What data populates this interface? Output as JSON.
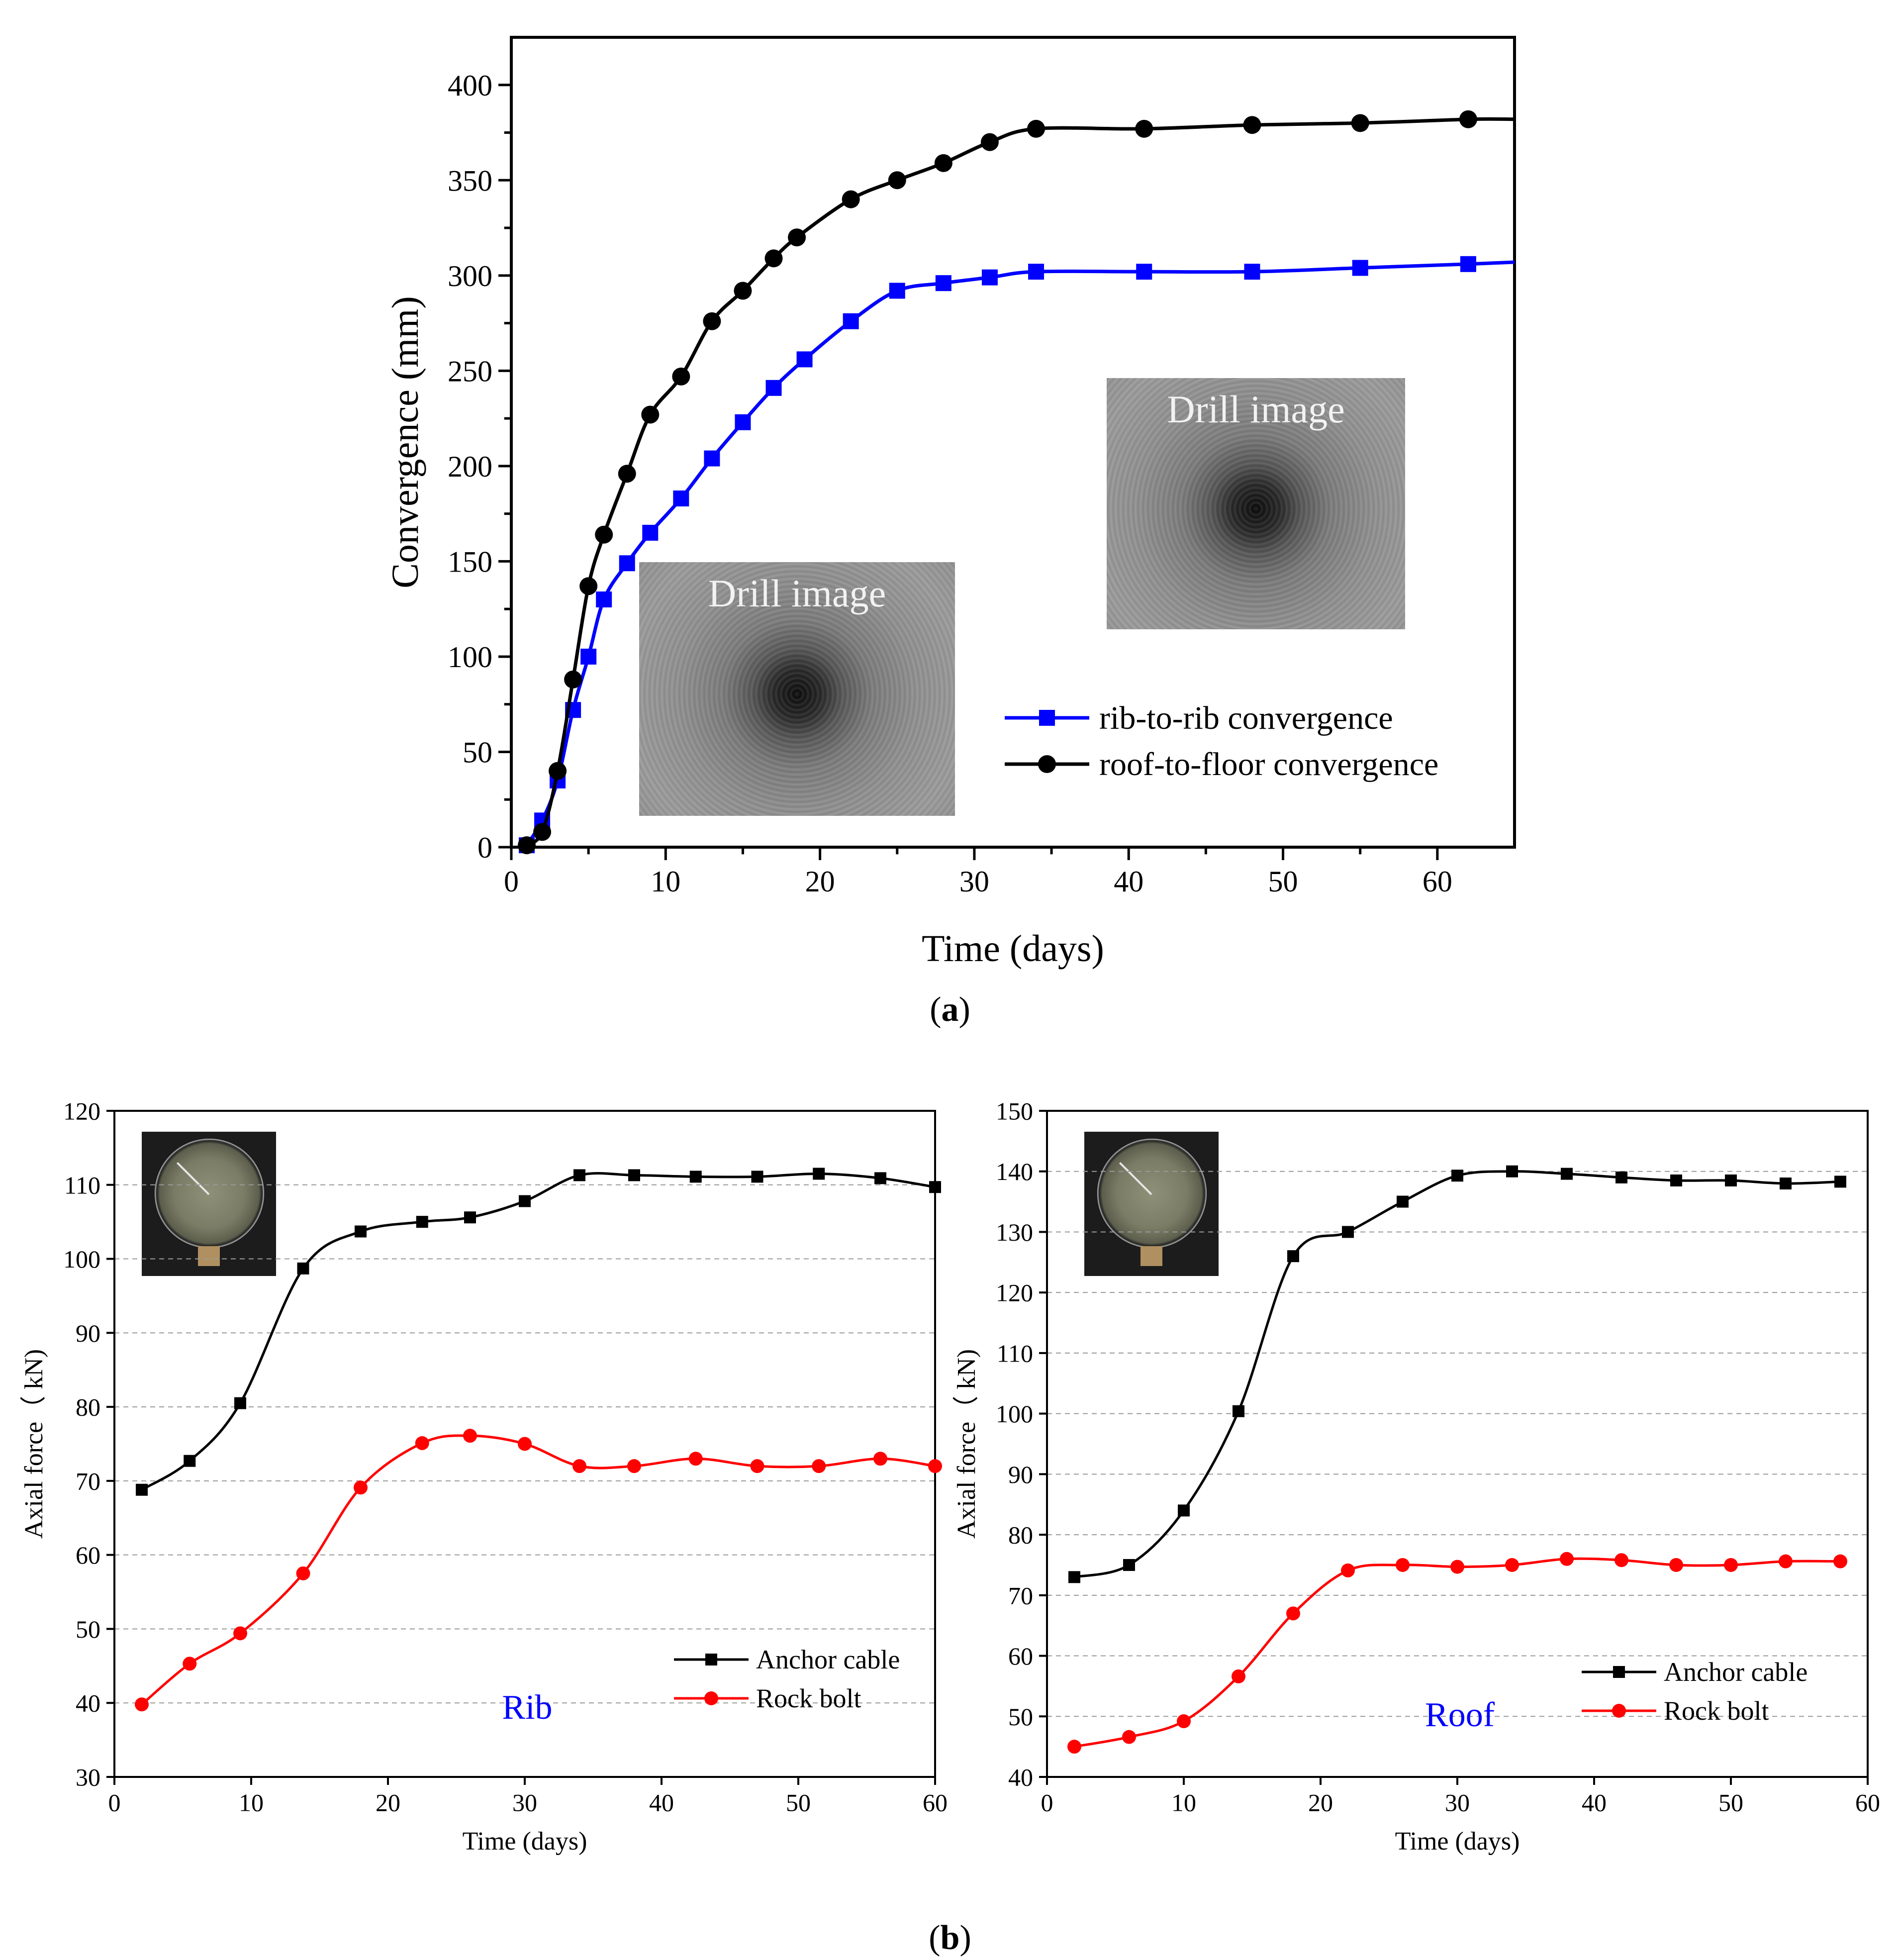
{
  "chart_data": [
    {
      "id": "a",
      "type": "line",
      "xlabel": "Time (days)",
      "ylabel": "Convergence (mm)",
      "xlim": [
        0,
        65
      ],
      "ylim": [
        0,
        425
      ],
      "xticks": [
        0,
        10,
        20,
        30,
        40,
        50,
        60
      ],
      "yticks": [
        0,
        50,
        100,
        150,
        200,
        250,
        300,
        350,
        400
      ],
      "series": [
        {
          "name": "rib-to-rib convergence",
          "color": "#0000ff",
          "marker": "square",
          "x": [
            1,
            2,
            3,
            4,
            5,
            6,
            7.5,
            9,
            11,
            13,
            15,
            17,
            19,
            22,
            25,
            28,
            31,
            34,
            41,
            48,
            55,
            62,
            65
          ],
          "y": [
            1,
            14,
            35,
            72,
            100,
            130,
            149,
            165,
            183,
            204,
            223,
            241,
            256,
            276,
            292,
            296,
            299,
            302,
            302,
            302,
            304,
            306,
            307
          ],
          "marker_count": 22
        },
        {
          "name": "roof-to-floor convergence",
          "color": "#000000",
          "marker": "circle",
          "x": [
            1,
            2,
            3,
            4,
            5,
            6,
            7.5,
            9,
            11,
            13,
            15,
            17,
            18.5,
            22,
            25,
            28,
            31,
            34,
            41,
            48,
            55,
            62,
            65
          ],
          "y": [
            1,
            8,
            40,
            88,
            137,
            164,
            196,
            227,
            247,
            276,
            292,
            309,
            320,
            340,
            350,
            359,
            370,
            377,
            377,
            379,
            380,
            382,
            382
          ],
          "marker_count": 22
        }
      ],
      "images": [
        {
          "label": "Drill image"
        },
        {
          "label": "Drill image"
        }
      ],
      "panel_label": "a"
    },
    {
      "id": "b-rib",
      "type": "line",
      "xlabel": "Time (days)",
      "ylabel": "Axial force（ kN)",
      "xlim": [
        0,
        60
      ],
      "ylim": [
        30,
        120
      ],
      "xticks": [
        0,
        10,
        20,
        30,
        40,
        50,
        60
      ],
      "yticks": [
        30,
        40,
        50,
        60,
        70,
        80,
        90,
        100,
        110,
        120
      ],
      "annotation": "Rib",
      "series": [
        {
          "name": "Anchor cable",
          "color": "#000000",
          "marker": "square",
          "x": [
            2,
            5.5,
            9.2,
            13.8,
            18,
            22.5,
            26,
            30,
            34,
            38,
            42.5,
            47,
            51.5,
            56,
            60
          ],
          "y": [
            68.8,
            72.7,
            80.5,
            98.7,
            103.7,
            105,
            105.6,
            107.8,
            111.3,
            111.3,
            111.1,
            111.1,
            111.5,
            110.9,
            109.7
          ]
        },
        {
          "name": "Rock bolt",
          "color": "#ff0000",
          "marker": "circle",
          "x": [
            2,
            5.5,
            9.2,
            13.8,
            18,
            22.5,
            26,
            30,
            34,
            38,
            42.5,
            47,
            51.5,
            56,
            60
          ],
          "y": [
            39.8,
            45.3,
            49.4,
            57.5,
            69.1,
            75.1,
            76.1,
            75,
            72,
            72,
            73,
            72,
            72,
            73,
            72
          ]
        }
      ]
    },
    {
      "id": "b-roof",
      "type": "line",
      "xlabel": "Time (days)",
      "ylabel": "Axial force（ kN)",
      "xlim": [
        0,
        60
      ],
      "ylim": [
        40,
        150
      ],
      "xticks": [
        0,
        10,
        20,
        30,
        40,
        50,
        60
      ],
      "yticks": [
        40,
        50,
        60,
        70,
        80,
        90,
        100,
        110,
        120,
        130,
        140,
        150
      ],
      "annotation": "Roof",
      "series": [
        {
          "name": "Anchor cable",
          "color": "#000000",
          "marker": "square",
          "x": [
            2,
            6,
            10,
            14,
            18,
            22,
            26,
            30,
            34,
            38,
            42,
            46,
            50,
            54,
            58
          ],
          "y": [
            73,
            75,
            84,
            100.4,
            126,
            130,
            135,
            139.3,
            140,
            139.6,
            139,
            138.5,
            138.5,
            138,
            138.3
          ]
        },
        {
          "name": "Rock bolt",
          "color": "#ff0000",
          "marker": "circle",
          "x": [
            2,
            6,
            10,
            14,
            18,
            22,
            26,
            30,
            34,
            38,
            42,
            46,
            50,
            54,
            58
          ],
          "y": [
            45,
            46.6,
            49.2,
            56.6,
            67,
            74.1,
            75,
            74.7,
            75,
            76,
            75.8,
            75,
            75,
            75.6,
            75.6
          ]
        }
      ],
      "panel_label": "b"
    }
  ]
}
